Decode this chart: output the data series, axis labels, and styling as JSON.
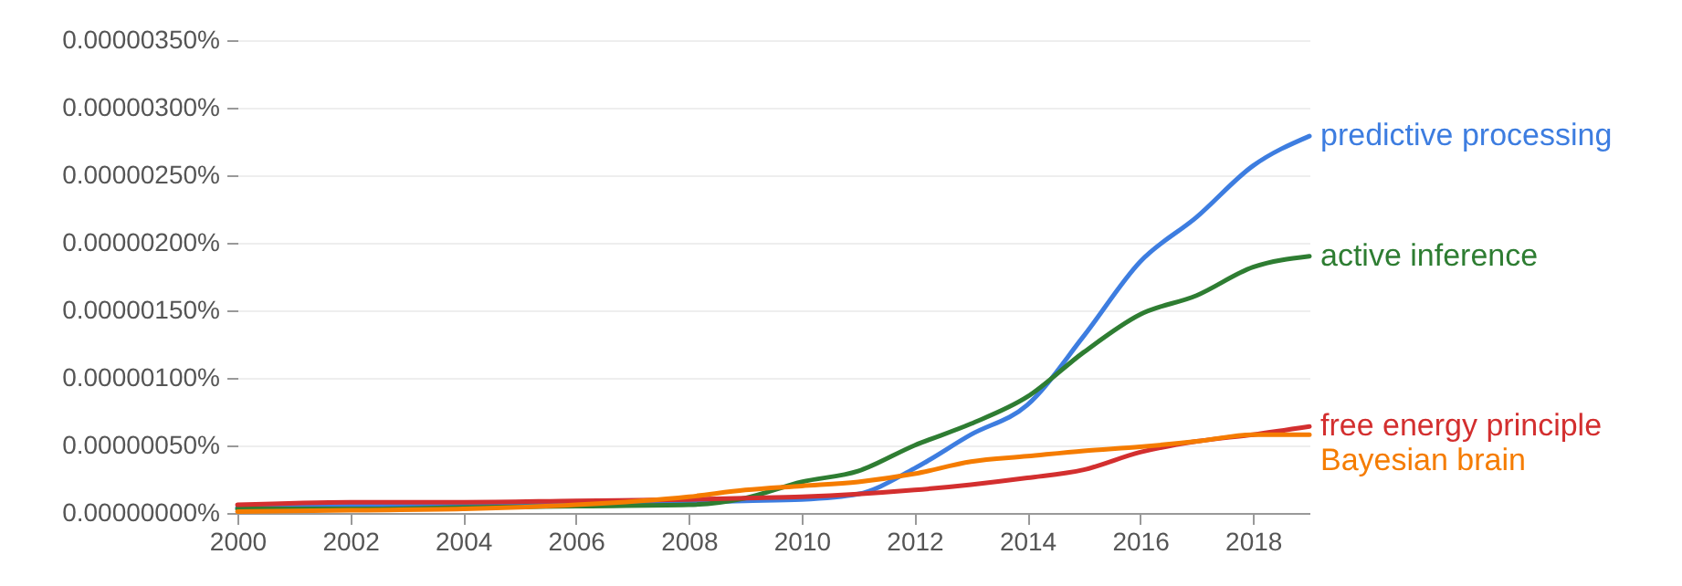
{
  "chart_data": {
    "type": "line",
    "x": [
      2000,
      2002,
      2004,
      2006,
      2008,
      2009,
      2010,
      2011,
      2012,
      2013,
      2014,
      2015,
      2016,
      2017,
      2018,
      2019
    ],
    "series": [
      {
        "name": "predictive processing",
        "color": "#3d7de0",
        "values": [
          4e-08,
          5e-08,
          6e-08,
          7e-08,
          8e-08,
          9e-08,
          1e-07,
          1.4e-07,
          3.3e-07,
          5.8e-07,
          8e-07,
          1.31e-06,
          1.86e-06,
          2.19e-06,
          2.57e-06,
          2.79e-06
        ]
      },
      {
        "name": "active inference",
        "color": "#2e7d32",
        "values": [
          3e-08,
          3e-08,
          4e-08,
          5e-08,
          6e-08,
          1.1e-07,
          2.3e-07,
          3.1e-07,
          5e-07,
          6.6e-07,
          8.6e-07,
          1.19e-06,
          1.47e-06,
          1.61e-06,
          1.82e-06,
          1.9e-06
        ]
      },
      {
        "name": "free energy principle",
        "color": "#d32f2f",
        "values": [
          6e-08,
          8e-08,
          8e-08,
          9e-08,
          1e-07,
          1.1e-07,
          1.2e-07,
          1.4e-07,
          1.7e-07,
          2.1e-07,
          2.6e-07,
          3.2e-07,
          4.5e-07,
          5.3e-07,
          5.8e-07,
          6.4e-07
        ]
      },
      {
        "name": "Bayesian brain",
        "color": "#f57c00",
        "values": [
          1e-08,
          2e-08,
          3e-08,
          6e-08,
          1.2e-07,
          1.7e-07,
          2e-07,
          2.3e-07,
          2.9e-07,
          3.8e-07,
          4.2e-07,
          4.6e-07,
          4.9e-07,
          5.3e-07,
          5.8e-07,
          5.8e-07
        ]
      }
    ],
    "xlim": [
      2000,
      2019
    ],
    "xticks": [
      2000,
      2002,
      2004,
      2006,
      2008,
      2010,
      2012,
      2014,
      2016,
      2018
    ],
    "ylim": [
      0,
      3.5e-06
    ],
    "yticks": [
      {
        "value": 0,
        "label": "0.00000000%"
      },
      {
        "value": 5e-07,
        "label": "0.00000050%"
      },
      {
        "value": 1e-06,
        "label": "0.00000100%"
      },
      {
        "value": 1.5e-06,
        "label": "0.00000150%"
      },
      {
        "value": 2e-06,
        "label": "0.00000200%"
      },
      {
        "value": 2.5e-06,
        "label": "0.00000250%"
      },
      {
        "value": 3e-06,
        "label": "0.00000300%"
      },
      {
        "value": 3.5e-06,
        "label": "0.00000350%"
      }
    ],
    "grid": "y",
    "line_style": "solid",
    "marker": "none"
  }
}
